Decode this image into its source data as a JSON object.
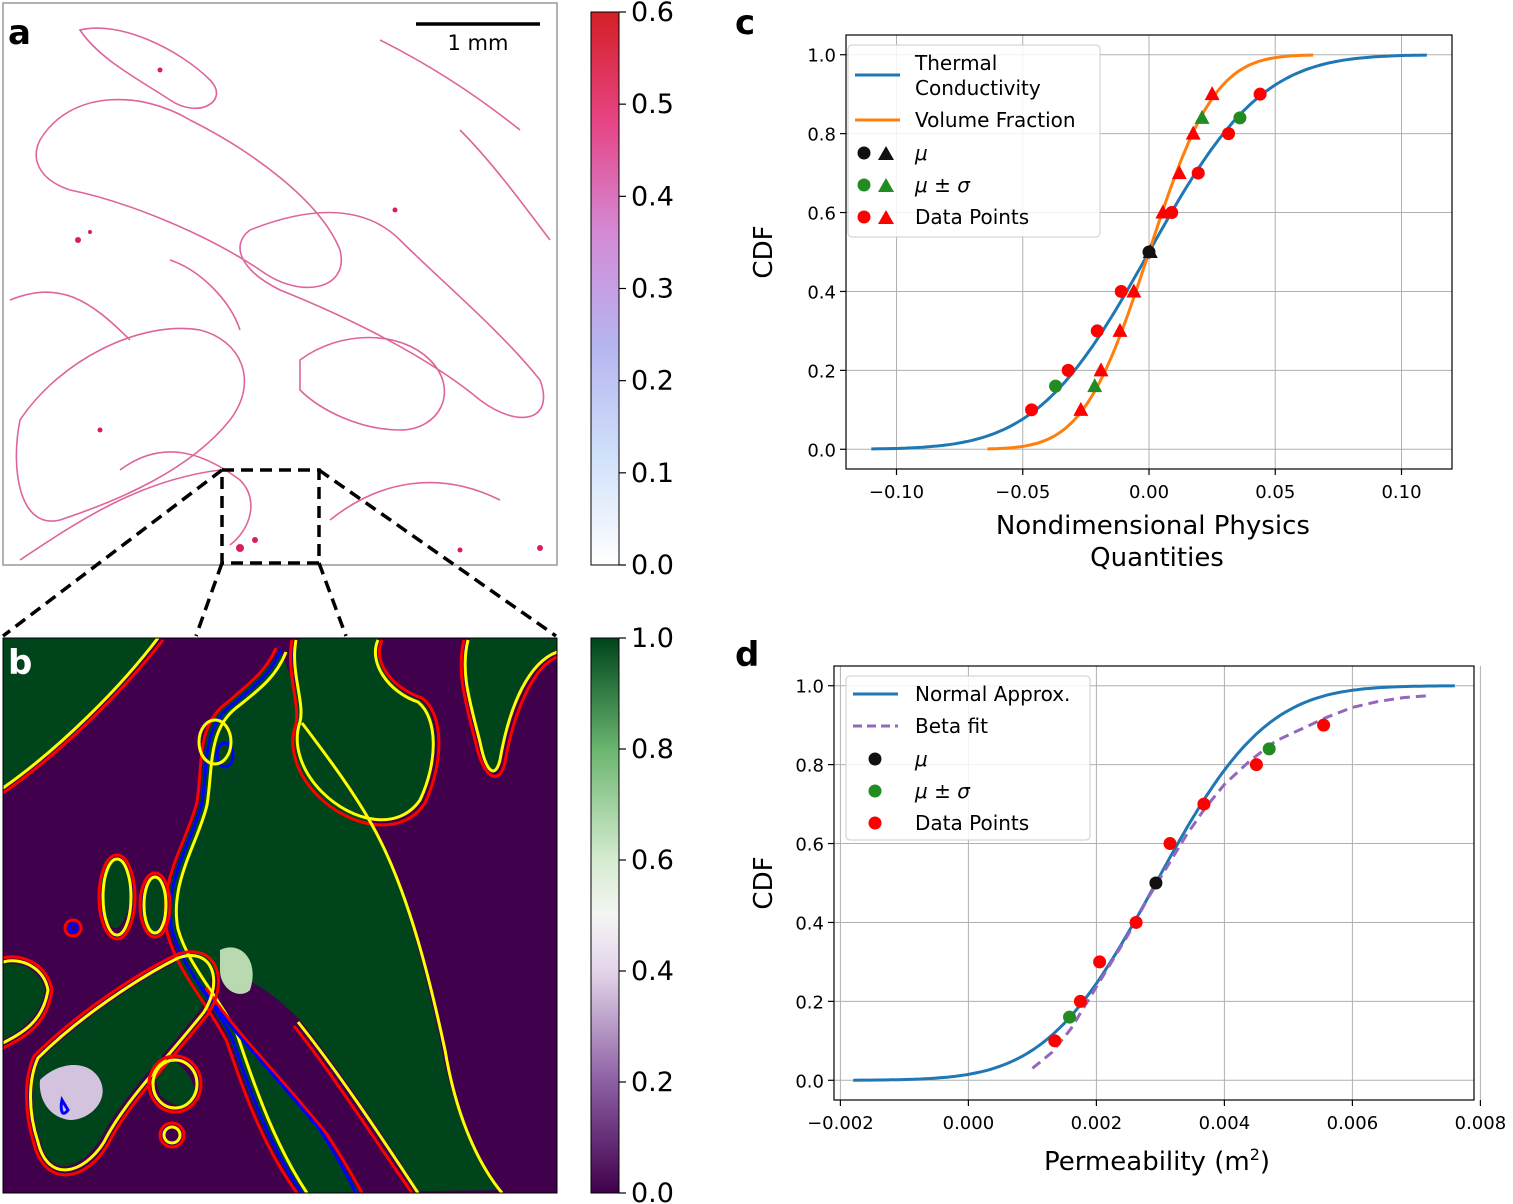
{
  "panels": {
    "a": {
      "label": "a",
      "scalebar_label": "1 mm",
      "colorbar": {
        "ticks": [
          "0.0",
          "0.1",
          "0.2",
          "0.3",
          "0.4",
          "0.5",
          "0.6"
        ],
        "range": [
          0,
          0.6
        ],
        "colormap": [
          "#ffffff",
          "#b9c8f5",
          "#c89be0",
          "#e0529a",
          "#d62028"
        ]
      }
    },
    "b": {
      "label": "b",
      "colorbar": {
        "ticks": [
          "0.0",
          "0.2",
          "0.4",
          "0.6",
          "0.8",
          "1.0"
        ],
        "range": [
          0,
          1
        ],
        "colormap": [
          "#40004b",
          "#9970ab",
          "#f7f7f7",
          "#5aae61",
          "#00441b"
        ]
      },
      "contour_colors": [
        "#ffff00",
        "#0000ff",
        "#ff0000"
      ]
    }
  },
  "chart_data": [
    {
      "id": "c",
      "label": "c",
      "type": "line",
      "xlabel": "Nondimensional Physics\nQuantities",
      "ylabel": "CDF",
      "xlim": [
        -0.12,
        0.12
      ],
      "ylim": [
        -0.05,
        1.05
      ],
      "xticks": [
        -0.1,
        -0.05,
        0.0,
        0.05,
        0.1
      ],
      "xtick_labels": [
        "−0.10",
        "−0.05",
        "0.00",
        "0.05",
        "0.10"
      ],
      "yticks": [
        0.0,
        0.2,
        0.4,
        0.6,
        0.8,
        1.0
      ],
      "ytick_labels": [
        "0.0",
        "0.2",
        "0.4",
        "0.6",
        "0.8",
        "1.0"
      ],
      "grid": true,
      "legend_position": "top-left",
      "curves": [
        {
          "name": "Thermal\nConductivity",
          "color": "#1f77b4",
          "kind": "normal",
          "mu": 0.0,
          "sigma": 0.035,
          "x_range": [
            -0.11,
            0.11
          ],
          "dashed": false
        },
        {
          "name": "Volume Fraction",
          "color": "#ff7f0e",
          "kind": "normal",
          "mu": 0.0,
          "sigma": 0.0205,
          "x_range": [
            -0.064,
            0.065
          ],
          "dashed": false
        }
      ],
      "legend_markers": [
        {
          "label": "μ",
          "color": "#111111",
          "markers": [
            "circle",
            "triangle"
          ]
        },
        {
          "label": "μ ± σ",
          "color": "#228b22",
          "markers": [
            "circle",
            "triangle"
          ]
        },
        {
          "label": "Data Points",
          "color": "#ff0000",
          "markers": [
            "circle",
            "triangle"
          ]
        }
      ],
      "series": [
        {
          "name": "thermal-data",
          "marker": "circle",
          "color": "#ff0000",
          "points": [
            [
              -0.0465,
              0.1
            ],
            [
              -0.032,
              0.2
            ],
            [
              -0.0205,
              0.3
            ],
            [
              -0.011,
              0.4
            ],
            [
              0.009,
              0.6
            ],
            [
              0.0195,
              0.7
            ],
            [
              0.0315,
              0.8
            ],
            [
              0.044,
              0.9
            ]
          ]
        },
        {
          "name": "thermal-mu-sigma",
          "marker": "circle",
          "color": "#228b22",
          "points": [
            [
              -0.037,
              0.16
            ],
            [
              0.036,
              0.84
            ]
          ]
        },
        {
          "name": "thermal-mu",
          "marker": "circle",
          "color": "#111111",
          "points": [
            [
              0.0,
              0.5
            ]
          ]
        },
        {
          "name": "volume-data",
          "marker": "triangle",
          "color": "#ff0000",
          "points": [
            [
              -0.027,
              0.1
            ],
            [
              -0.019,
              0.2
            ],
            [
              -0.0115,
              0.3
            ],
            [
              -0.006,
              0.4
            ],
            [
              0.0055,
              0.6
            ],
            [
              0.012,
              0.7
            ],
            [
              0.0175,
              0.8
            ],
            [
              0.025,
              0.9
            ]
          ]
        },
        {
          "name": "volume-mu-sigma",
          "marker": "triangle",
          "color": "#228b22",
          "points": [
            [
              -0.0215,
              0.16
            ],
            [
              0.021,
              0.84
            ]
          ]
        },
        {
          "name": "volume-mu",
          "marker": "triangle",
          "color": "#111111",
          "points": [
            [
              0.0005,
              0.5
            ]
          ]
        }
      ]
    },
    {
      "id": "d",
      "label": "d",
      "type": "line",
      "xlabel": "Permeability (m",
      "xlabel_sup": "2",
      "xlabel_end": ")",
      "ylabel": "CDF",
      "xlim": [
        -0.0021,
        0.0079
      ],
      "ylim": [
        -0.05,
        1.05
      ],
      "xticks": [
        -0.002,
        0.0,
        0.002,
        0.004,
        0.006,
        0.008
      ],
      "xtick_labels": [
        "−0.002",
        "0.000",
        "0.002",
        "0.004",
        "0.006",
        "0.008"
      ],
      "yticks": [
        0.0,
        0.2,
        0.4,
        0.6,
        0.8,
        1.0
      ],
      "ytick_labels": [
        "0.0",
        "0.2",
        "0.4",
        "0.6",
        "0.8",
        "1.0"
      ],
      "grid": true,
      "legend_position": "top-left",
      "curves": [
        {
          "name": "Normal Approx.",
          "color": "#1f77b4",
          "kind": "normal",
          "mu": 0.00293,
          "sigma": 0.00135,
          "x_range": [
            -0.0018,
            0.0076
          ],
          "dashed": false
        },
        {
          "name": "Beta fit",
          "color": "#9467bd",
          "kind": "points",
          "dashed": true,
          "points": [
            [
              0.001,
              0.03
            ],
            [
              0.0013,
              0.07
            ],
            [
              0.0016,
              0.13
            ],
            [
              0.0019,
              0.21
            ],
            [
              0.0022,
              0.29
            ],
            [
              0.0025,
              0.37
            ],
            [
              0.0028,
              0.46
            ],
            [
              0.0031,
              0.54
            ],
            [
              0.0034,
              0.62
            ],
            [
              0.0037,
              0.69
            ],
            [
              0.004,
              0.75
            ],
            [
              0.0044,
              0.81
            ],
            [
              0.0048,
              0.86
            ],
            [
              0.0052,
              0.89
            ],
            [
              0.0056,
              0.92
            ],
            [
              0.006,
              0.945
            ],
            [
              0.0064,
              0.96
            ],
            [
              0.0068,
              0.97
            ],
            [
              0.0072,
              0.975
            ]
          ]
        }
      ],
      "legend_markers": [
        {
          "label": "μ",
          "color": "#111111",
          "markers": [
            "circle"
          ]
        },
        {
          "label": "μ ± σ",
          "color": "#228b22",
          "markers": [
            "circle"
          ]
        },
        {
          "label": "Data Points",
          "color": "#ff0000",
          "markers": [
            "circle"
          ]
        }
      ],
      "series": [
        {
          "name": "perm-data",
          "marker": "circle",
          "color": "#ff0000",
          "points": [
            [
              0.00135,
              0.1
            ],
            [
              0.00175,
              0.2
            ],
            [
              0.00205,
              0.3
            ],
            [
              0.00262,
              0.4
            ],
            [
              0.00315,
              0.6
            ],
            [
              0.00368,
              0.7
            ],
            [
              0.0045,
              0.8
            ],
            [
              0.00555,
              0.9
            ]
          ]
        },
        {
          "name": "perm-mu-sigma",
          "marker": "circle",
          "color": "#228b22",
          "points": [
            [
              0.00158,
              0.16
            ],
            [
              0.0047,
              0.84
            ]
          ]
        },
        {
          "name": "perm-mu",
          "marker": "circle",
          "color": "#111111",
          "points": [
            [
              0.00293,
              0.5
            ]
          ]
        }
      ]
    }
  ]
}
